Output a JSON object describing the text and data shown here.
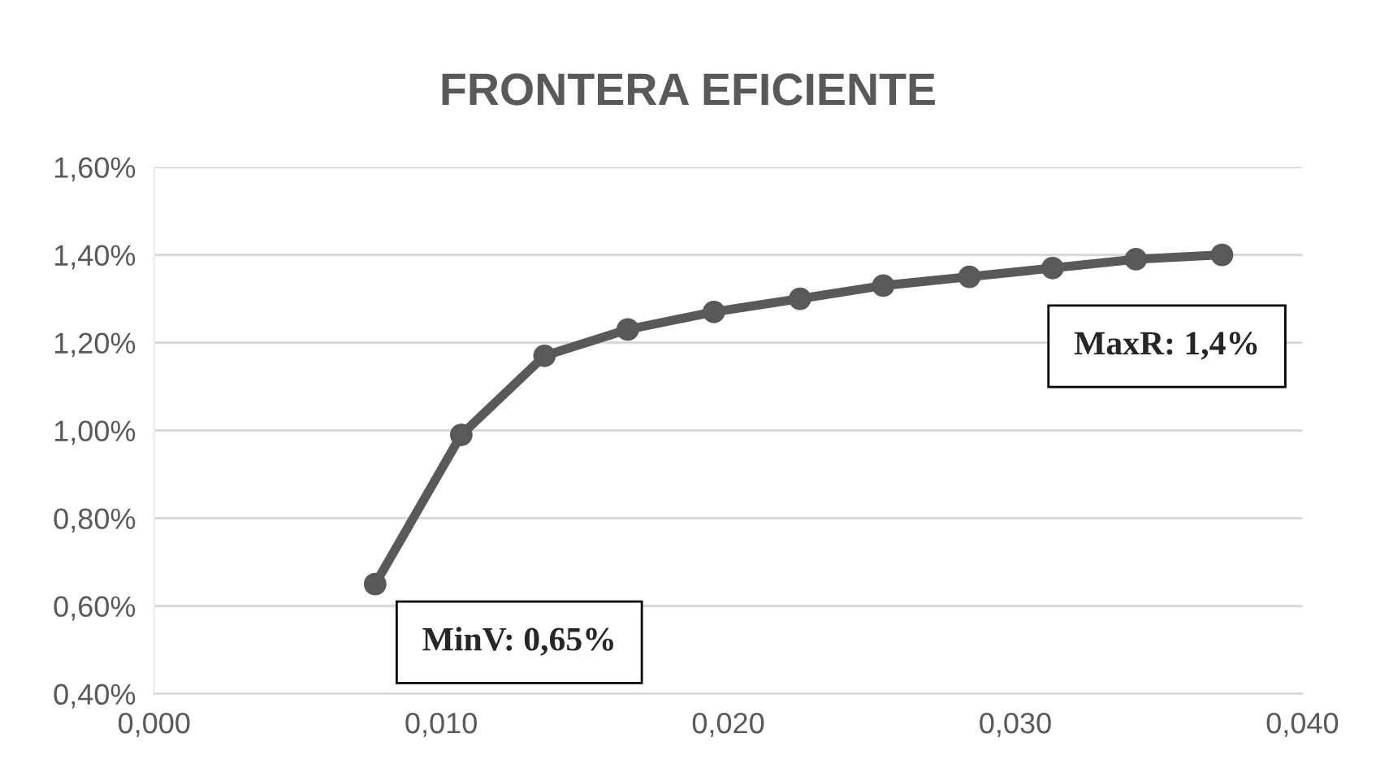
{
  "chart_data": {
    "type": "line",
    "title": "FRONTERA EFICIENTE",
    "x": [
      0.0077,
      0.0107,
      0.0136,
      0.0165,
      0.0195,
      0.0225,
      0.0254,
      0.0284,
      0.0313,
      0.0342,
      0.0372
    ],
    "series": [
      {
        "color": "#595959",
        "values": [
          0.65,
          0.99,
          1.17,
          1.23,
          1.27,
          1.3,
          1.33,
          1.35,
          1.37,
          1.39,
          1.4
        ]
      }
    ],
    "xlim": [
      0,
      0.04
    ],
    "xticks": [
      {
        "value": 0,
        "label": "0,000"
      },
      {
        "value": 0.01,
        "label": "0,010"
      },
      {
        "value": 0.02,
        "label": "0,020"
      },
      {
        "value": 0.03,
        "label": "0,030"
      },
      {
        "value": 0.04,
        "label": "0,040"
      }
    ],
    "ylim": [
      0.4,
      1.6
    ],
    "yticks": [
      {
        "value": 0.4,
        "label": "0,40%"
      },
      {
        "value": 0.6,
        "label": "0,60%"
      },
      {
        "value": 0.8,
        "label": "0,80%"
      },
      {
        "value": 1.0,
        "label": "1,00%"
      },
      {
        "value": 1.2,
        "label": "1,20%"
      },
      {
        "value": 1.4,
        "label": "1,40%"
      },
      {
        "value": 1.6,
        "label": "1,60%"
      }
    ],
    "grid": "y",
    "marker": "circle",
    "line_style": "solid",
    "annotations": [
      "MinV: 0,65%",
      "MaxR: 1,4%"
    ]
  }
}
